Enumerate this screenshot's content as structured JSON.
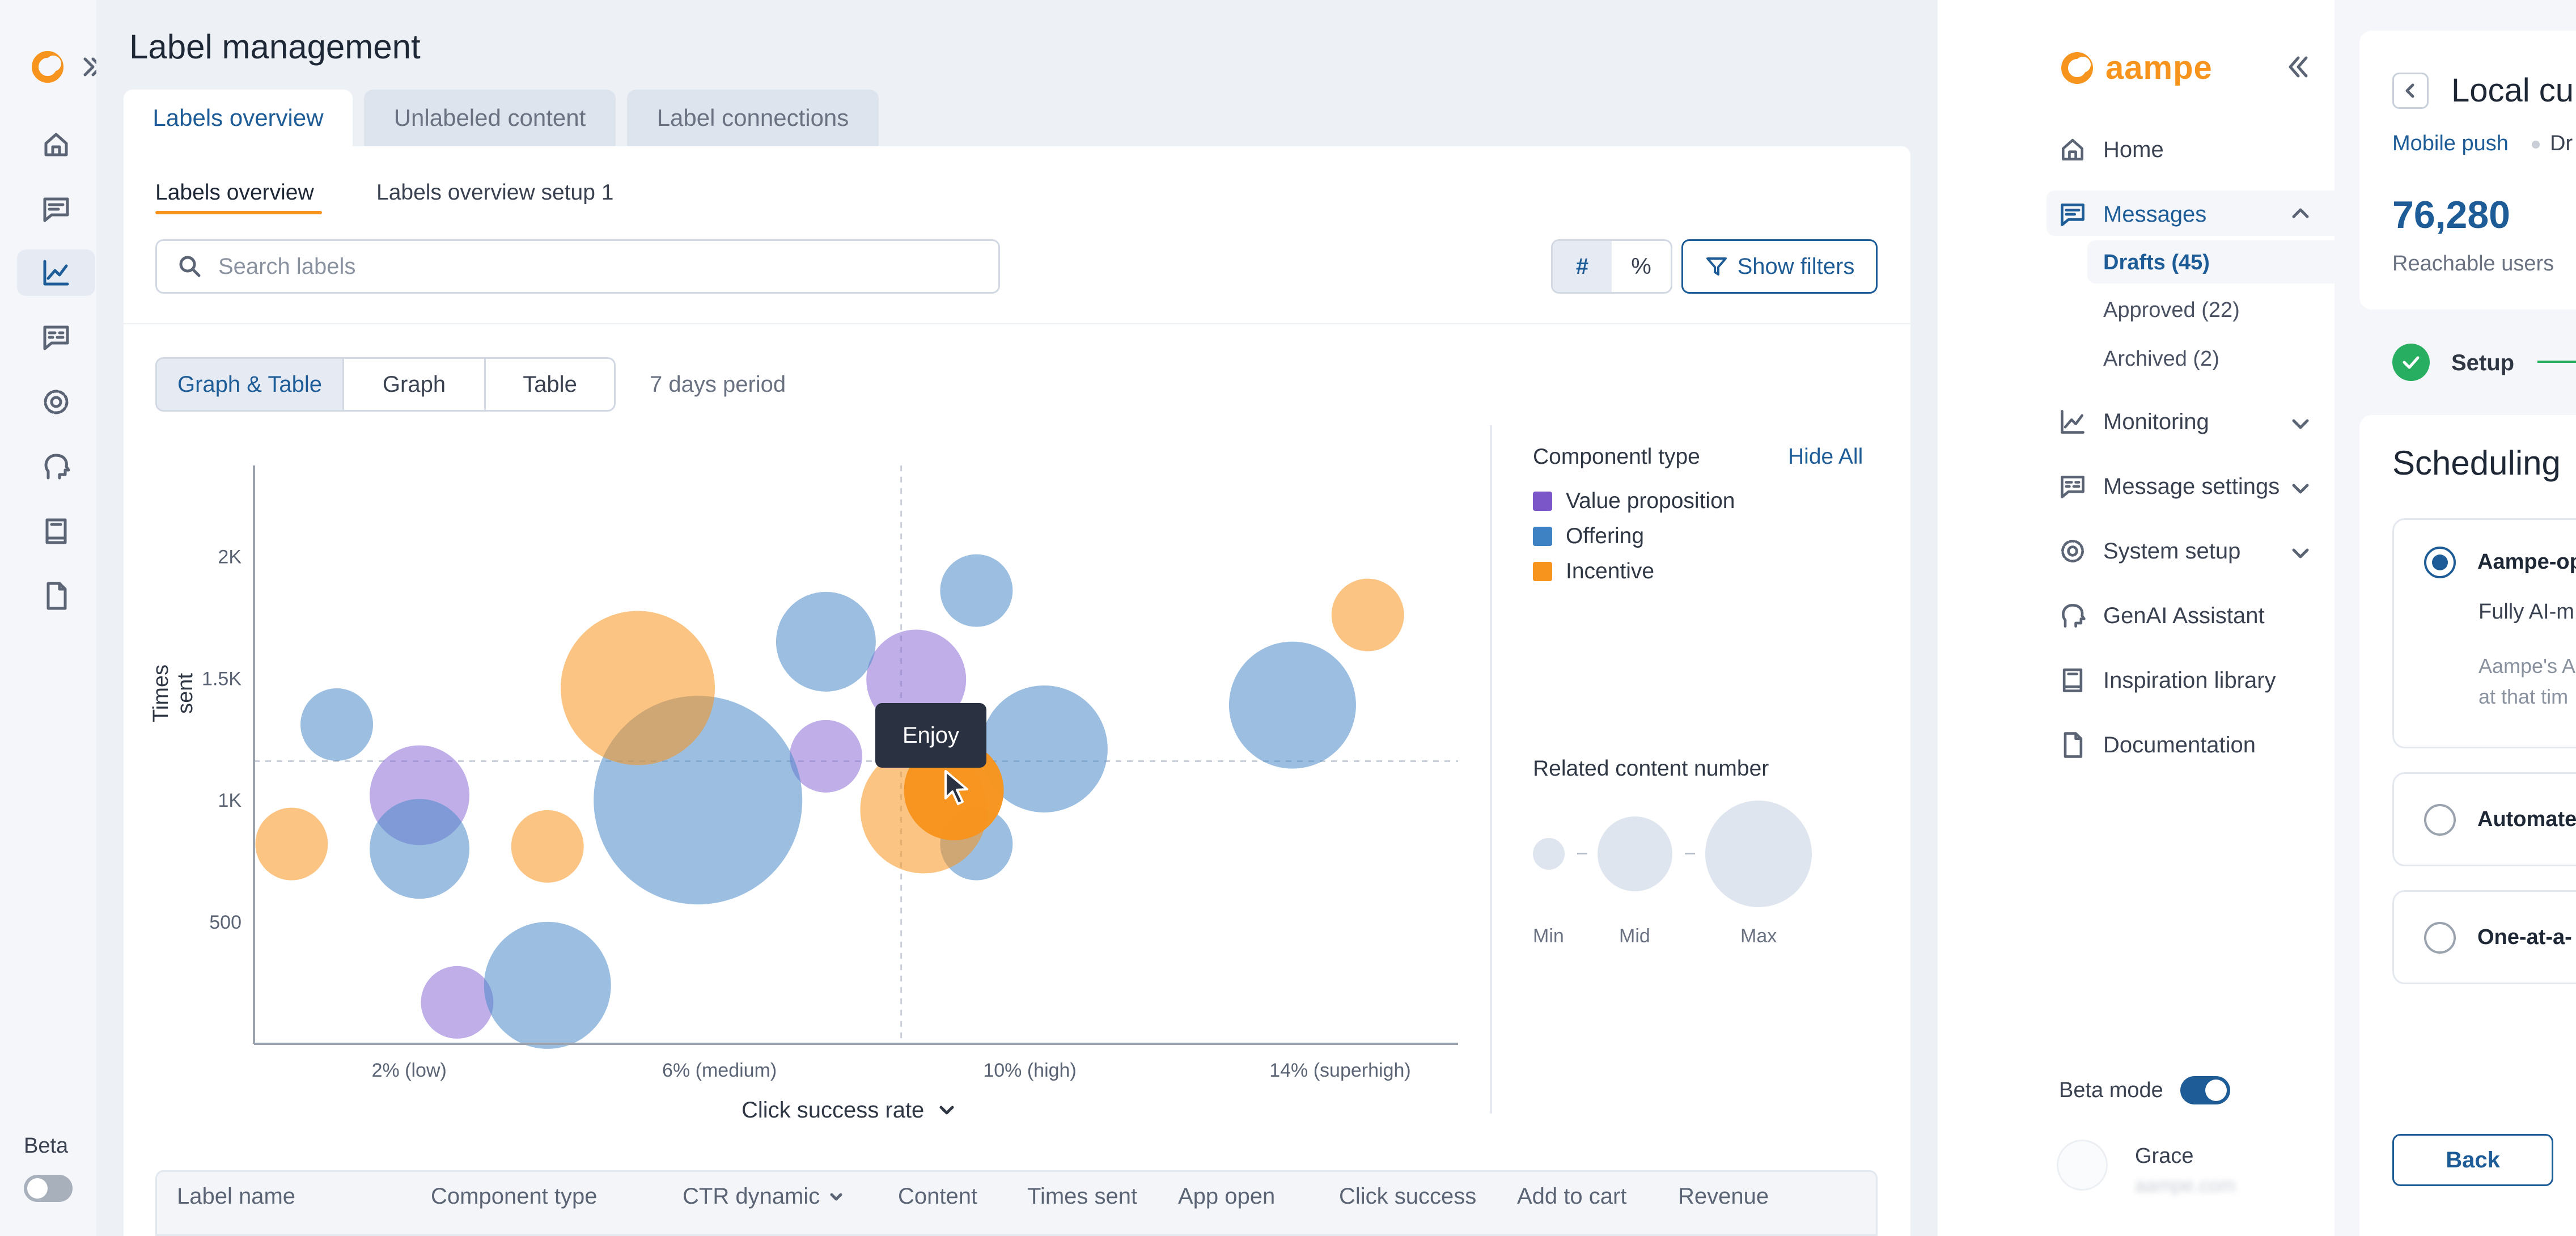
{
  "rail": {
    "beta_label": "Beta"
  },
  "page": {
    "title": "Label management"
  },
  "top_tabs": [
    {
      "label": "Labels overview"
    },
    {
      "label": "Unlabeled content"
    },
    {
      "label": "Label connections"
    }
  ],
  "sub_tabs": [
    {
      "label": "Labels overview"
    },
    {
      "label": "Labels overview setup 1"
    }
  ],
  "search": {
    "placeholder": "Search labels"
  },
  "unit_toggle": {
    "count": "#",
    "percent": "%"
  },
  "filters_button": {
    "label": "Show filters"
  },
  "view_toggle": {
    "options": [
      "Graph & Table",
      "Graph",
      "Table"
    ],
    "period": "7 days period"
  },
  "chart_data": {
    "type": "scatter",
    "xlabel": "Click success rate",
    "ylabel": "Times sent",
    "x_ticks": [
      "2% (low)",
      "6% (medium)",
      "10% (high)",
      "14% (superhigh)"
    ],
    "y_ticks": [
      "500",
      "1K",
      "1.5K",
      "2K"
    ],
    "ylim": [
      0,
      2350
    ],
    "xlim": [
      0,
      16
    ],
    "grid": false,
    "legend_position": "right",
    "series": [
      {
        "name": "Value proposition",
        "color": "#8b6bd6",
        "points": [
          {
            "x": 2.2,
            "y": 1020,
            "size": 2
          },
          {
            "x": 8.8,
            "y": 1495,
            "size": 2
          },
          {
            "x": 7.6,
            "y": 1180,
            "size": 1
          },
          {
            "x": 2.7,
            "y": 170,
            "size": 1
          }
        ]
      },
      {
        "name": "Offering",
        "color": "#4a8bc9",
        "points": [
          {
            "x": 1.1,
            "y": 1310,
            "size": 1
          },
          {
            "x": 2.2,
            "y": 800,
            "size": 2
          },
          {
            "x": 3.9,
            "y": 240,
            "size": 3
          },
          {
            "x": 5.9,
            "y": 1000,
            "size": 6
          },
          {
            "x": 7.6,
            "y": 1650,
            "size": 2
          },
          {
            "x": 9.6,
            "y": 1860,
            "size": 1
          },
          {
            "x": 10.5,
            "y": 1210,
            "size": 3
          },
          {
            "x": 9.6,
            "y": 820,
            "size": 1
          },
          {
            "x": 13.8,
            "y": 1390,
            "size": 3
          }
        ]
      },
      {
        "name": "Incentive",
        "color": "#f7941d",
        "points": [
          {
            "x": 0.5,
            "y": 820,
            "size": 1
          },
          {
            "x": 3.9,
            "y": 810,
            "size": 1
          },
          {
            "x": 5.1,
            "y": 1460,
            "size": 4
          },
          {
            "x": 8.9,
            "y": 960,
            "size": 3
          },
          {
            "x": 9.3,
            "y": 1040,
            "size": 2
          },
          {
            "x": 14.8,
            "y": 1760,
            "size": 1
          }
        ]
      }
    ],
    "tooltip": "Enjoy"
  },
  "legend": {
    "title": "Componentl type",
    "hide_all": "Hide All",
    "items": [
      {
        "label": "Value proposition",
        "color": "#8b6bd6"
      },
      {
        "label": "Offering",
        "color": "#4a8bc9"
      },
      {
        "label": "Incentive",
        "color": "#f7941d"
      }
    ],
    "size_title": "Related content number",
    "size_labels": [
      "Min",
      "Mid",
      "Max"
    ]
  },
  "table": {
    "columns": [
      "Label name",
      "Component type",
      "CTR dynamic",
      "Content",
      "Times sent",
      "App open",
      "Click success",
      "Add to cart",
      "Revenue"
    ]
  },
  "app": {
    "brand": "aampe",
    "nav": [
      {
        "label": "Home"
      },
      {
        "label": "Messages"
      },
      {
        "label": "Monitoring"
      },
      {
        "label": "Message settings"
      },
      {
        "label": "System setup"
      },
      {
        "label": "GenAI Assistant"
      },
      {
        "label": "Inspiration library"
      },
      {
        "label": "Documentation"
      }
    ],
    "messages_sub": [
      "Drafts (45)",
      "Approved (22)",
      "Archived (2)"
    ],
    "beta_mode": "Beta mode",
    "user_name": "Grace",
    "user_email": "aampe.com"
  },
  "detail": {
    "title": "Local cu",
    "channel": "Mobile push",
    "channel_status": "Dr",
    "reachable_count": "76,280",
    "reachable_label": "Reachable users",
    "step_label": "Setup",
    "section_title": "Scheduling",
    "option1_title": "Aampe-op",
    "option1_sub": "Fully AI-m",
    "option1_desc1": "Aampe's A",
    "option1_desc2": "at that tim",
    "option2_title": "Automate",
    "option3_title": "One-at-a-",
    "back_button": "Back"
  },
  "colors": {
    "accent": "#1d5c96",
    "brand_orange": "#f7941d",
    "success": "#27ae60"
  }
}
